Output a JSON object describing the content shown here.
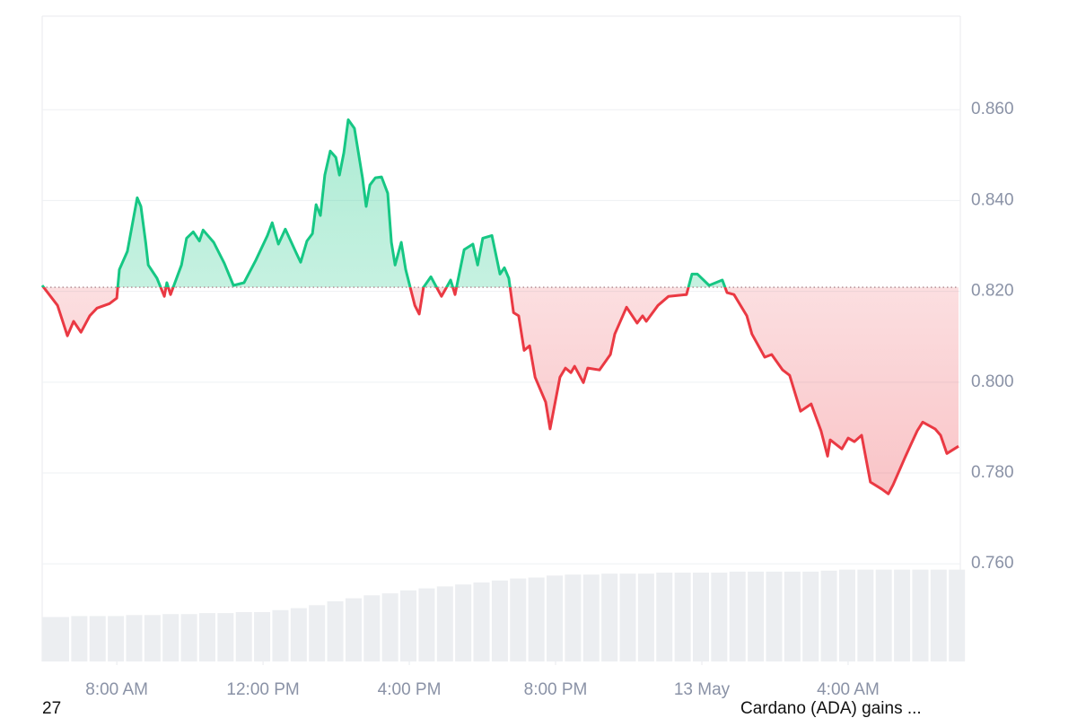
{
  "chart_data": {
    "type": "line",
    "x": [
      5.96,
      6.38,
      6.65,
      6.82,
      7.02,
      7.26,
      7.46,
      7.8,
      8.0,
      8.07,
      8.29,
      8.56,
      8.66,
      8.79,
      8.86,
      9.1,
      9.3,
      9.37,
      9.47,
      9.77,
      9.91,
      10.09,
      10.26,
      10.36,
      10.65,
      10.94,
      11.19,
      11.48,
      11.8,
      12.12,
      12.25,
      12.42,
      12.61,
      12.91,
      13.03,
      13.2,
      13.35,
      13.45,
      13.57,
      13.69,
      13.84,
      13.99,
      14.09,
      14.21,
      14.33,
      14.5,
      14.72,
      14.82,
      14.92,
      15.07,
      15.24,
      15.41,
      15.51,
      15.61,
      15.78,
      15.9,
      16.15,
      16.27,
      16.39,
      16.59,
      16.88,
      17.13,
      17.25,
      17.5,
      17.74,
      17.87,
      18.01,
      18.26,
      18.48,
      18.6,
      18.72,
      18.85,
      18.99,
      19.14,
      19.29,
      19.44,
      19.73,
      19.85,
      20.12,
      20.27,
      20.42,
      20.52,
      20.76,
      20.88,
      21.2,
      21.5,
      21.62,
      21.94,
      22.23,
      22.38,
      22.48,
      22.8,
      23.09,
      23.58,
      23.73,
      23.88,
      24.2,
      24.56,
      24.69,
      24.88,
      25.23,
      25.37,
      25.72,
      25.91,
      26.21,
      26.4,
      26.7,
      26.99,
      27.26,
      27.44,
      27.51,
      27.83,
      28.0,
      28.17,
      28.37,
      28.61,
      28.93,
      29.1,
      29.23,
      29.55,
      29.72,
      29.89,
      30.04,
      30.38,
      30.53,
      30.7,
      31.02
    ],
    "values": [
      0.8213,
      0.8169,
      0.8102,
      0.8134,
      0.811,
      0.8146,
      0.8163,
      0.8173,
      0.8185,
      0.8248,
      0.8288,
      0.8406,
      0.8387,
      0.8308,
      0.8258,
      0.8229,
      0.8189,
      0.8219,
      0.8193,
      0.8258,
      0.8317,
      0.8331,
      0.8311,
      0.8335,
      0.8308,
      0.8262,
      0.8213,
      0.8219,
      0.8268,
      0.8323,
      0.8351,
      0.8304,
      0.8337,
      0.8284,
      0.8264,
      0.8311,
      0.8327,
      0.8391,
      0.8367,
      0.8456,
      0.8509,
      0.8495,
      0.8456,
      0.8505,
      0.8578,
      0.8559,
      0.845,
      0.8387,
      0.8434,
      0.845,
      0.8452,
      0.8416,
      0.8308,
      0.8258,
      0.8308,
      0.8248,
      0.8169,
      0.815,
      0.8209,
      0.8232,
      0.8189,
      0.8225,
      0.8193,
      0.8292,
      0.8304,
      0.8258,
      0.8317,
      0.8323,
      0.8238,
      0.8252,
      0.8229,
      0.8153,
      0.8146,
      0.807,
      0.808,
      0.8011,
      0.7956,
      0.7897,
      0.8011,
      0.8031,
      0.8021,
      0.8035,
      0.7999,
      0.8031,
      0.8027,
      0.8061,
      0.8106,
      0.8165,
      0.813,
      0.8146,
      0.8134,
      0.8169,
      0.8189,
      0.8193,
      0.8238,
      0.8238,
      0.8213,
      0.8225,
      0.8197,
      0.8193,
      0.8146,
      0.8106,
      0.8055,
      0.8061,
      0.8027,
      0.8015,
      0.7936,
      0.7952,
      0.7893,
      0.7837,
      0.7873,
      0.7853,
      0.7877,
      0.7869,
      0.7883,
      0.778,
      0.7764,
      0.7754,
      0.7774,
      0.7833,
      0.7863,
      0.7893,
      0.7912,
      0.7897,
      0.7883,
      0.7843,
      0.7859
    ],
    "baseline": 0.8209,
    "up_color": "#16c784",
    "down_color": "#ea3943",
    "xlim": [
      5.96,
      31.02
    ],
    "xticks": [
      {
        "value": 8,
        "label": "8:00 AM"
      },
      {
        "value": 12,
        "label": "12:00 PM"
      },
      {
        "value": 16,
        "label": "4:00 PM"
      },
      {
        "value": 20,
        "label": "8:00 PM"
      },
      {
        "value": 24,
        "label": "13 May"
      },
      {
        "value": 28,
        "label": "4:00 AM"
      }
    ],
    "ylim": [
      0.7385,
      0.8806
    ],
    "yticks": [
      {
        "value": 0.86,
        "label": "0.860"
      },
      {
        "value": 0.84,
        "label": "0.840"
      },
      {
        "value": 0.82,
        "label": "0.820"
      },
      {
        "value": 0.8,
        "label": "0.800"
      },
      {
        "value": 0.78,
        "label": "0.780"
      },
      {
        "value": 0.76,
        "label": "0.760"
      }
    ],
    "grid": true,
    "volume": {
      "color": "#eceef1",
      "x": [
        6.0,
        6.5,
        7.0,
        7.5,
        8.0,
        8.5,
        9.0,
        9.5,
        10.0,
        10.5,
        11.0,
        11.5,
        12.0,
        12.5,
        13.0,
        13.5,
        14.0,
        14.5,
        15.0,
        15.5,
        16.0,
        16.5,
        17.0,
        17.5,
        18.0,
        18.5,
        19.0,
        19.5,
        20.0,
        20.5,
        21.0,
        21.5,
        22.0,
        22.5,
        23.0,
        23.5,
        24.0,
        24.5,
        25.0,
        25.5,
        26.0,
        26.5,
        27.0,
        27.5,
        28.0,
        28.5,
        29.0,
        29.5,
        30.0,
        30.5,
        31.0
      ],
      "values": [
        45,
        45,
        46,
        46,
        46,
        47,
        47,
        48,
        48,
        49,
        49,
        50,
        50,
        52,
        54,
        57,
        61,
        64,
        67,
        69,
        72,
        74,
        76,
        78,
        80,
        82,
        84,
        85,
        87,
        88,
        88,
        89,
        89,
        89,
        90,
        90,
        90,
        90,
        91,
        91,
        91,
        91,
        91,
        92,
        93,
        93,
        93,
        93,
        93,
        93,
        93
      ],
      "ylim": [
        0,
        100
      ]
    }
  },
  "footer": {
    "left": "27",
    "right": "Cardano (ADA) gains ..."
  }
}
